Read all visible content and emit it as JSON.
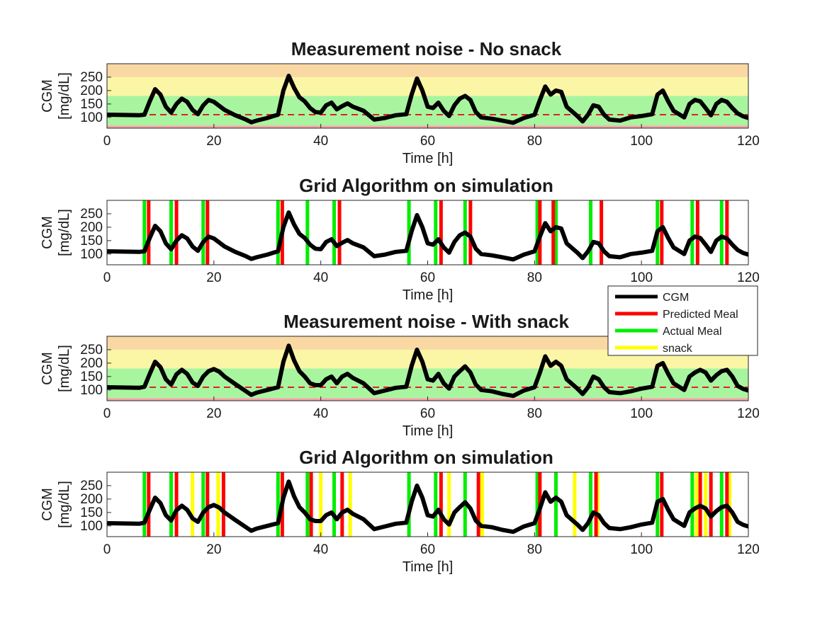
{
  "chart_data": [
    {
      "type": "line",
      "title": "Measurement noise - No snack",
      "xlabel": "Time [h]",
      "ylabel": "CGM\n[mg/dL]",
      "xlim": [
        0,
        120
      ],
      "ylim": [
        60,
        300
      ],
      "xticks": [
        0,
        20,
        40,
        60,
        80,
        100,
        120
      ],
      "yticks": [
        100,
        150,
        200,
        250
      ],
      "background_bands": [
        {
          "from": 60,
          "to": 70,
          "color": "#f4a6a6"
        },
        {
          "from": 70,
          "to": 180,
          "color": "#a8f5a0"
        },
        {
          "from": 180,
          "to": 250,
          "color": "#fbf5a6"
        },
        {
          "from": 250,
          "to": 300,
          "color": "#f9d8a4"
        }
      ],
      "reference_line": {
        "y": 110,
        "color": "#dd2222",
        "style": "dashed"
      },
      "series": [
        {
          "color": "#000000",
          "x": [
            0,
            6,
            7,
            8,
            9,
            10,
            11,
            12,
            13,
            14,
            15,
            16,
            17,
            18,
            19,
            20,
            22,
            24,
            26,
            27,
            28,
            30,
            31,
            32,
            33,
            34,
            35,
            36,
            37,
            38,
            39,
            40,
            41,
            42,
            43,
            44,
            45,
            46,
            48,
            50,
            52,
            54,
            56,
            57,
            58,
            59,
            60,
            61,
            62,
            63,
            64,
            65,
            66,
            67,
            68,
            69,
            70,
            72,
            74,
            76,
            78,
            80,
            81,
            82,
            83,
            84,
            85,
            86,
            88,
            89,
            90,
            91,
            92,
            93,
            94,
            96,
            98,
            100,
            102,
            103,
            104,
            105,
            106,
            108,
            109,
            110,
            111,
            112,
            113,
            114,
            115,
            116,
            117,
            118,
            119,
            120
          ],
          "y": [
            110,
            108,
            110,
            160,
            205,
            185,
            140,
            118,
            150,
            170,
            158,
            128,
            112,
            145,
            165,
            158,
            128,
            108,
            92,
            82,
            88,
            98,
            104,
            110,
            200,
            255,
            210,
            175,
            160,
            135,
            120,
            118,
            145,
            155,
            130,
            142,
            152,
            140,
            125,
            92,
            98,
            108,
            112,
            185,
            245,
            200,
            140,
            135,
            155,
            125,
            105,
            145,
            170,
            180,
            165,
            120,
            100,
            95,
            88,
            80,
            98,
            110,
            165,
            215,
            185,
            200,
            195,
            140,
            105,
            85,
            110,
            145,
            140,
            110,
            92,
            88,
            100,
            105,
            112,
            185,
            200,
            160,
            125,
            100,
            150,
            165,
            160,
            135,
            108,
            150,
            165,
            158,
            135,
            115,
            104,
            98
          ]
        }
      ]
    },
    {
      "type": "line",
      "title": "Grid Algorithm on simulation",
      "xlabel": "Time [h]",
      "ylabel": "CGM\n[mg/dL]",
      "xlim": [
        0,
        120
      ],
      "ylim": [
        60,
        300
      ],
      "xticks": [
        0,
        20,
        40,
        60,
        80,
        100,
        120
      ],
      "yticks": [
        100,
        150,
        200,
        250
      ],
      "series": [
        {
          "color": "#000000",
          "x": [
            0,
            6,
            7,
            8,
            9,
            10,
            11,
            12,
            13,
            14,
            15,
            16,
            17,
            18,
            19,
            20,
            22,
            24,
            26,
            27,
            28,
            30,
            31,
            32,
            33,
            34,
            35,
            36,
            37,
            38,
            39,
            40,
            41,
            42,
            43,
            44,
            45,
            46,
            48,
            50,
            52,
            54,
            56,
            57,
            58,
            59,
            60,
            61,
            62,
            63,
            64,
            65,
            66,
            67,
            68,
            69,
            70,
            72,
            74,
            76,
            78,
            80,
            81,
            82,
            83,
            84,
            85,
            86,
            88,
            89,
            90,
            91,
            92,
            93,
            94,
            96,
            98,
            100,
            102,
            103,
            104,
            105,
            106,
            108,
            109,
            110,
            111,
            112,
            113,
            114,
            115,
            116,
            117,
            118,
            119,
            120
          ],
          "y": [
            110,
            108,
            110,
            160,
            205,
            185,
            140,
            118,
            150,
            170,
            158,
            128,
            112,
            145,
            165,
            158,
            128,
            108,
            92,
            82,
            88,
            98,
            104,
            110,
            200,
            255,
            210,
            175,
            160,
            135,
            120,
            118,
            145,
            155,
            130,
            142,
            152,
            140,
            125,
            92,
            98,
            108,
            112,
            185,
            245,
            200,
            140,
            135,
            155,
            125,
            105,
            145,
            170,
            180,
            165,
            120,
            100,
            95,
            88,
            80,
            98,
            110,
            165,
            215,
            185,
            200,
            195,
            140,
            105,
            85,
            110,
            145,
            140,
            110,
            92,
            88,
            100,
            105,
            112,
            185,
            200,
            160,
            125,
            100,
            150,
            165,
            160,
            135,
            108,
            150,
            165,
            158,
            135,
            115,
            104,
            98
          ]
        }
      ],
      "actual_meals": [
        7,
        12,
        18,
        32,
        37.5,
        42.5,
        56.5,
        61.5,
        67,
        80.5,
        84,
        90.5,
        103,
        109.5,
        115
      ],
      "predicted_meals": [
        7.8,
        13,
        18.8,
        32.8,
        43.5,
        62.5,
        68,
        81,
        83.5,
        92.5,
        103.8,
        110.5,
        116
      ]
    },
    {
      "type": "line",
      "title": "Measurement noise - With snack",
      "xlabel": "Time [h]",
      "ylabel": "CGM\n[mg/dL]",
      "xlim": [
        0,
        120
      ],
      "ylim": [
        60,
        300
      ],
      "xticks": [
        0,
        20,
        40,
        60,
        80,
        100,
        120
      ],
      "yticks": [
        100,
        150,
        200,
        250
      ],
      "background_bands": [
        {
          "from": 60,
          "to": 70,
          "color": "#f4a6a6"
        },
        {
          "from": 70,
          "to": 180,
          "color": "#a8f5a0"
        },
        {
          "from": 180,
          "to": 250,
          "color": "#fbf5a6"
        },
        {
          "from": 250,
          "to": 300,
          "color": "#f9d8a4"
        }
      ],
      "reference_line": {
        "y": 110,
        "color": "#dd2222",
        "style": "dashed"
      },
      "series": [
        {
          "color": "#000000",
          "x": [
            0,
            6,
            7,
            8,
            9,
            10,
            11,
            12,
            13,
            14,
            15,
            16,
            17,
            18,
            19,
            20,
            21,
            22,
            24,
            26,
            27,
            28,
            30,
            31,
            32,
            33,
            34,
            35,
            36,
            37,
            38,
            39,
            40,
            41,
            42,
            43,
            44,
            45,
            46,
            48,
            50,
            52,
            54,
            56,
            57,
            58,
            59,
            60,
            61,
            62,
            63,
            64,
            65,
            66,
            67,
            68,
            69,
            70,
            72,
            74,
            76,
            78,
            80,
            81,
            82,
            83,
            84,
            85,
            86,
            88,
            89,
            90,
            91,
            92,
            93,
            94,
            96,
            98,
            100,
            102,
            103,
            104,
            105,
            106,
            108,
            109,
            110,
            111,
            112,
            113,
            114,
            115,
            116,
            117,
            118,
            119,
            120
          ],
          "y": [
            110,
            108,
            112,
            160,
            205,
            185,
            140,
            120,
            158,
            175,
            160,
            128,
            115,
            150,
            170,
            178,
            168,
            150,
            122,
            95,
            82,
            90,
            100,
            105,
            110,
            205,
            265,
            210,
            170,
            150,
            125,
            118,
            118,
            140,
            150,
            125,
            150,
            160,
            145,
            125,
            88,
            98,
            108,
            112,
            190,
            250,
            205,
            140,
            135,
            160,
            125,
            105,
            150,
            170,
            188,
            165,
            120,
            100,
            95,
            85,
            78,
            98,
            110,
            165,
            225,
            190,
            205,
            190,
            140,
            105,
            85,
            110,
            150,
            140,
            110,
            92,
            88,
            95,
            105,
            112,
            190,
            200,
            160,
            125,
            100,
            150,
            165,
            175,
            165,
            135,
            155,
            170,
            175,
            150,
            115,
            104,
            98
          ]
        }
      ]
    },
    {
      "type": "line",
      "title": "Grid Algorithm on simulation",
      "xlabel": "Time [h]",
      "ylabel": "CGM\n[mg/dL]",
      "xlim": [
        0,
        120
      ],
      "ylim": [
        60,
        300
      ],
      "xticks": [
        0,
        20,
        40,
        60,
        80,
        100,
        120
      ],
      "yticks": [
        100,
        150,
        200,
        250
      ],
      "series": [
        {
          "color": "#000000",
          "x": [
            0,
            6,
            7,
            8,
            9,
            10,
            11,
            12,
            13,
            14,
            15,
            16,
            17,
            18,
            19,
            20,
            21,
            22,
            24,
            26,
            27,
            28,
            30,
            31,
            32,
            33,
            34,
            35,
            36,
            37,
            38,
            39,
            40,
            41,
            42,
            43,
            44,
            45,
            46,
            48,
            50,
            52,
            54,
            56,
            57,
            58,
            59,
            60,
            61,
            62,
            63,
            64,
            65,
            66,
            67,
            68,
            69,
            70,
            72,
            74,
            76,
            78,
            80,
            81,
            82,
            83,
            84,
            85,
            86,
            88,
            89,
            90,
            91,
            92,
            93,
            94,
            96,
            98,
            100,
            102,
            103,
            104,
            105,
            106,
            108,
            109,
            110,
            111,
            112,
            113,
            114,
            115,
            116,
            117,
            118,
            119,
            120
          ],
          "y": [
            110,
            108,
            112,
            160,
            205,
            185,
            140,
            120,
            158,
            175,
            160,
            128,
            115,
            150,
            170,
            178,
            168,
            150,
            122,
            95,
            82,
            90,
            100,
            105,
            110,
            205,
            265,
            210,
            170,
            150,
            125,
            118,
            118,
            140,
            150,
            125,
            150,
            160,
            145,
            125,
            88,
            98,
            108,
            112,
            190,
            250,
            205,
            140,
            135,
            160,
            125,
            105,
            150,
            170,
            188,
            165,
            120,
            100,
            95,
            85,
            78,
            98,
            110,
            165,
            225,
            190,
            205,
            190,
            140,
            105,
            85,
            110,
            150,
            140,
            110,
            92,
            88,
            95,
            105,
            112,
            190,
            200,
            160,
            125,
            100,
            150,
            165,
            175,
            165,
            135,
            155,
            170,
            175,
            150,
            115,
            104,
            98
          ]
        }
      ],
      "actual_meals": [
        7,
        12,
        18,
        32,
        37.5,
        42.5,
        56.5,
        61.5,
        67,
        80.5,
        84,
        90.5,
        103,
        109.5,
        115
      ],
      "predicted_meals": [
        7.8,
        13,
        18.8,
        21.8,
        32.8,
        38.2,
        44,
        62.5,
        69.5,
        81,
        91.5,
        103.8,
        111,
        113,
        116
      ],
      "snacks": [
        16,
        20.8,
        40,
        45.5,
        64,
        70.2,
        87.5,
        91.8,
        110.3,
        112,
        116.5
      ]
    }
  ],
  "legend": {
    "placement": "right, between panels 2 and 3",
    "entries": [
      {
        "label": "CGM",
        "color": "#000000"
      },
      {
        "label": "Predicted Meal",
        "color": "#ff0000"
      },
      {
        "label": "Actual Meal",
        "color": "#00ee00"
      },
      {
        "label": "snack",
        "color": "#ffff00"
      }
    ]
  }
}
